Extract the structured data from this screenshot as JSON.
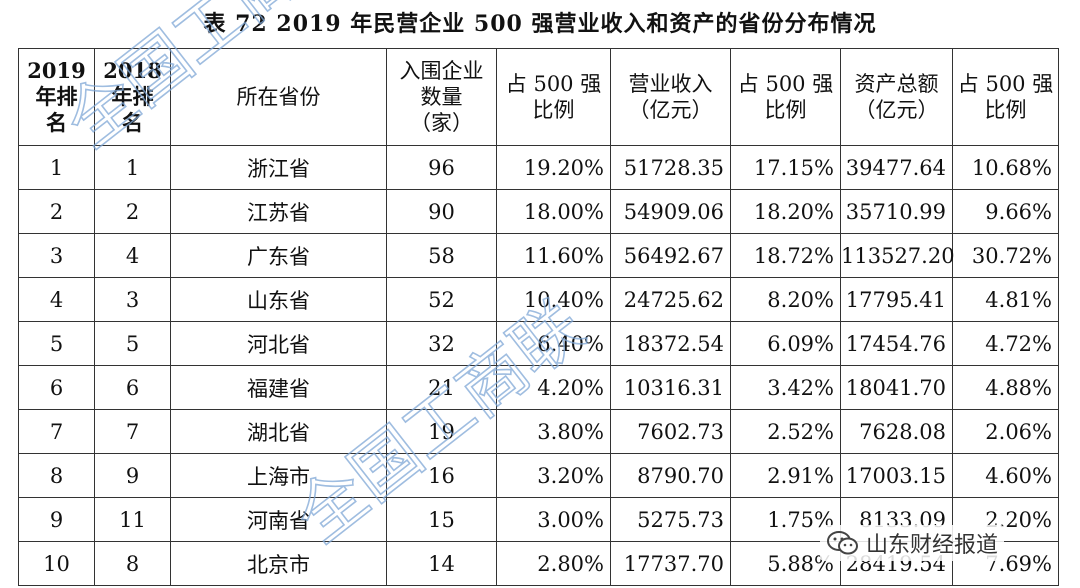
{
  "title": "表 72   2019 年民营企业 500 强营业收入和资产的省份分布情况",
  "headers": [
    "2019\n年排\n名",
    "2018\n年排\n名",
    "所在省份",
    "入围企业\n数量\n（家）",
    "占 500 强\n比例",
    "营业收入\n（亿元）",
    "占 500 强\n比例",
    "资产总额\n（亿元）",
    "占 500 强\n比例"
  ],
  "rows": [
    [
      "1",
      "1",
      "浙江省",
      "96",
      "19.20%",
      "51728.35",
      "17.15%",
      "39477.64",
      "10.68%"
    ],
    [
      "2",
      "2",
      "江苏省",
      "90",
      "18.00%",
      "54909.06",
      "18.20%",
      "35710.99",
      "9.66%"
    ],
    [
      "3",
      "4",
      "广东省",
      "58",
      "11.60%",
      "56492.67",
      "18.72%",
      "113527.20",
      "30.72%"
    ],
    [
      "4",
      "3",
      "山东省",
      "52",
      "10.40%",
      "24725.62",
      "8.20%",
      "17795.41",
      "4.81%"
    ],
    [
      "5",
      "5",
      "河北省",
      "32",
      "6.40%",
      "18372.54",
      "6.09%",
      "17454.76",
      "4.72%"
    ],
    [
      "6",
      "6",
      "福建省",
      "21",
      "4.20%",
      "10316.31",
      "3.42%",
      "18041.70",
      "4.88%"
    ],
    [
      "7",
      "7",
      "湖北省",
      "19",
      "3.80%",
      "7602.73",
      "2.52%",
      "7628.08",
      "2.06%"
    ],
    [
      "8",
      "9",
      "上海市",
      "16",
      "3.20%",
      "8790.70",
      "2.91%",
      "17003.15",
      "4.60%"
    ],
    [
      "9",
      "11",
      "河南省",
      "15",
      "3.00%",
      "5275.73",
      "1.75%",
      "8133.09",
      "2.20%"
    ],
    [
      "10",
      "8",
      "北京市",
      "14",
      "2.80%",
      "17737.70",
      "5.88%",
      "28419.54",
      "7.69%"
    ]
  ],
  "watermarks": [
    "全国工商联",
    "全国工商联"
  ],
  "wechat_label": "山东财经报道",
  "colors": {
    "watermark": "#7fa7d6",
    "border": "#333333"
  }
}
